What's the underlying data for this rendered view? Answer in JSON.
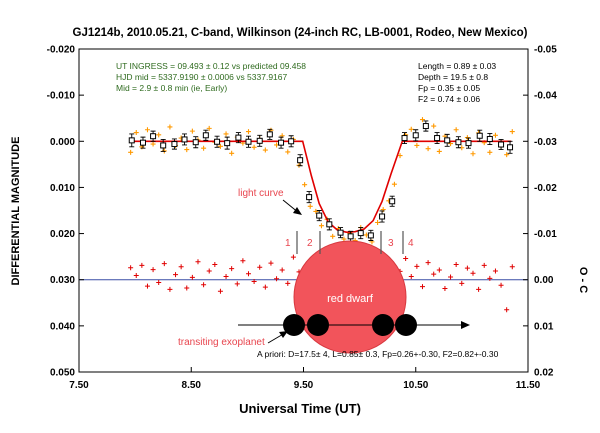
{
  "chart_data": {
    "type": "scatter",
    "title": "GJ1214b, 2010.05.21, C-band, Wilkinson (24-inch RC, LB-0001, Rodeo, New Mexico)",
    "xlabel": "Universal Time (UT)",
    "ylabel": "DIFFERENTIAL MAGNITUDE",
    "y2label": "O - C",
    "xlim": [
      7.5,
      11.5
    ],
    "ylim_reversed": [
      -0.02,
      0.05
    ],
    "y2lim_reversed": [
      -0.05,
      0.02
    ],
    "x_ticks": [
      7.5,
      8.5,
      9.5,
      10.5,
      11.5
    ],
    "x_tick_labels": [
      "7.50",
      "8.50",
      "9.50",
      "10.50",
      "11.50"
    ],
    "y_ticks": [
      -0.02,
      -0.01,
      0.0,
      0.01,
      0.02,
      0.03,
      0.04,
      0.05
    ],
    "y_tick_labels": [
      "-0.020",
      "-0.010",
      "0.000",
      "0.010",
      "0.020",
      "0.030",
      "0.040",
      "0.050"
    ],
    "y2_ticks": [
      -0.05,
      -0.04,
      -0.03,
      -0.02,
      -0.01,
      0.0,
      0.01,
      0.02
    ],
    "y2_tick_labels": [
      "-0.05",
      "-0.04",
      "-0.03",
      "-0.02",
      "-0.01",
      "0.00",
      "0.01",
      "0.02"
    ],
    "info_left": [
      "UT INGRESS = 09.493 ± 0.12 vs predicted  09.458",
      "HJD mid = 5337.9190 ± 0.0006 vs 5337.9167",
      "Mid = 2.9 ± 0.8 min (ie, Early)"
    ],
    "info_right": [
      "Length = 0.89 ± 0.03",
      "Depth = 19.5 ± 0.8",
      "Fp = 0.35 ± 0.05",
      "F2 = 0.74 ± 0.06"
    ],
    "annotations": {
      "light_curve": "light curve",
      "red_dwarf": "red dwarf",
      "transiting_exoplanet": "transiting exoplanet",
      "apriori": "A priori: D=17.5± 4, L=0.85± 0.3, Fp=0.26+-0.30, F2=0.82+-0.30",
      "phases": [
        "1",
        "2",
        "3",
        "4"
      ]
    },
    "model": {
      "name": "model fit",
      "color": "#e00000",
      "x": [
        7.95,
        9.493,
        9.57,
        9.64,
        9.72,
        9.8,
        9.88,
        9.96,
        10.04,
        10.12,
        10.2,
        10.28,
        10.38,
        11.35
      ],
      "y": [
        0.0,
        0.0,
        0.0075,
        0.0135,
        0.0175,
        0.0192,
        0.0197,
        0.0196,
        0.019,
        0.0172,
        0.013,
        0.007,
        0.0,
        0.0
      ]
    },
    "binned": {
      "name": "binned data",
      "marker": "open square with error bars",
      "x": [
        7.97,
        8.07,
        8.16,
        8.25,
        8.35,
        8.44,
        8.54,
        8.63,
        8.73,
        8.82,
        8.92,
        9.01,
        9.11,
        9.2,
        9.3,
        9.39,
        9.47,
        9.55,
        9.64,
        9.73,
        9.83,
        9.92,
        10.01,
        10.1,
        10.2,
        10.29,
        10.4,
        10.5,
        10.59,
        10.69,
        10.78,
        10.88,
        10.97,
        11.07,
        11.16,
        11.26,
        11.34
      ],
      "y": [
        -0.0002,
        0.0003,
        -0.0011,
        0.0009,
        0.0006,
        -0.0004,
        0.0002,
        -0.0013,
        0.0001,
        0.0004,
        -0.0008,
        0.0001,
        -0.0001,
        -0.0015,
        0.0003,
        0.0,
        0.0041,
        0.0121,
        0.0161,
        0.018,
        0.0198,
        0.0206,
        0.0199,
        0.0204,
        0.0163,
        0.013,
        -0.0007,
        -0.0013,
        -0.0033,
        -0.0007,
        -0.0002,
        0.0002,
        0.0004,
        -0.0012,
        -0.0005,
        0.0007,
        0.0013
      ],
      "err": [
        0.0014,
        0.0012,
        0.0011,
        0.0013,
        0.0011,
        0.0012,
        0.0012,
        0.0011,
        0.0012,
        0.0013,
        0.0011,
        0.0012,
        0.0012,
        0.0011,
        0.0012,
        0.0012,
        0.0012,
        0.0012,
        0.0011,
        0.0012,
        0.0011,
        0.0011,
        0.0012,
        0.0011,
        0.0012,
        0.0011,
        0.0012,
        0.0012,
        0.0011,
        0.0012,
        0.0013,
        0.0012,
        0.0011,
        0.0012,
        0.0012,
        0.0011,
        0.0013
      ]
    },
    "raw": {
      "name": "individual measurements",
      "marker": "plus",
      "color": "#ff9900",
      "x": [
        7.96,
        8.01,
        8.06,
        8.11,
        8.16,
        8.21,
        8.26,
        8.31,
        8.36,
        8.41,
        8.46,
        8.51,
        8.56,
        8.61,
        8.66,
        8.71,
        8.76,
        8.81,
        8.86,
        8.91,
        8.96,
        9.01,
        9.06,
        9.11,
        9.16,
        9.21,
        9.26,
        9.31,
        9.36,
        9.41,
        9.46,
        9.51,
        9.56,
        9.61,
        9.66,
        9.71,
        9.76,
        9.81,
        9.86,
        9.91,
        9.96,
        10.01,
        10.06,
        10.11,
        10.16,
        10.21,
        10.26,
        10.31,
        10.36,
        10.41,
        10.46,
        10.51,
        10.56,
        10.61,
        10.66,
        10.71,
        10.76,
        10.81,
        10.86,
        10.91,
        10.96,
        11.01,
        11.06,
        11.11,
        11.16,
        11.21,
        11.26,
        11.31,
        11.36
      ],
      "y": [
        0.0024,
        -0.0019,
        0.0012,
        -0.0025,
        0.0006,
        -0.0014,
        0.0021,
        -0.0031,
        0.0009,
        -0.0007,
        0.0018,
        -0.0022,
        -0.0003,
        0.0015,
        -0.0028,
        0.0002,
        0.0011,
        -0.0016,
        0.0026,
        -0.0009,
        0.0004,
        -0.0021,
        0.0013,
        -0.0006,
        0.0019,
        -0.0024,
        0.0008,
        -0.0012,
        0.0023,
        -0.0004,
        0.0052,
        0.0094,
        0.0141,
        0.0152,
        0.0183,
        0.0169,
        0.0206,
        0.0189,
        0.0212,
        0.0199,
        0.0215,
        0.0187,
        0.0203,
        0.0218,
        0.0176,
        0.0148,
        0.0129,
        0.0093,
        0.0031,
        -0.0014,
        -0.0026,
        0.0009,
        -0.0047,
        0.0016,
        -0.0033,
        0.0022,
        -0.0011,
        0.0005,
        -0.0025,
        0.0014,
        -0.0008,
        0.0027,
        -0.0018,
        0.0003,
        0.0024,
        -0.0013,
        0.0011,
        0.0029,
        -0.0021
      ]
    },
    "residuals": {
      "name": "O - C residuals",
      "marker": "plus",
      "color": "#e00000",
      "axis": "y2",
      "x": [
        7.96,
        8.01,
        8.06,
        8.11,
        8.16,
        8.21,
        8.26,
        8.31,
        8.36,
        8.41,
        8.46,
        8.51,
        8.56,
        8.61,
        8.66,
        8.71,
        8.76,
        8.81,
        8.86,
        8.91,
        8.96,
        9.01,
        9.06,
        9.11,
        9.16,
        9.21,
        9.26,
        9.31,
        9.36,
        9.41,
        9.46,
        9.51,
        9.56,
        9.61,
        9.66,
        9.71,
        9.76,
        9.81,
        9.86,
        9.91,
        9.96,
        10.01,
        10.06,
        10.11,
        10.16,
        10.21,
        10.26,
        10.31,
        10.36,
        10.41,
        10.46,
        10.51,
        10.56,
        10.61,
        10.66,
        10.71,
        10.76,
        10.81,
        10.86,
        10.91,
        10.96,
        11.01,
        11.06,
        11.11,
        11.16,
        11.21,
        11.26,
        11.31,
        11.36
      ],
      "y": [
        -0.0026,
        -0.0009,
        -0.0031,
        0.0014,
        -0.0022,
        0.0006,
        -0.0035,
        0.0021,
        -0.0011,
        -0.0028,
        0.0018,
        -0.0005,
        -0.0039,
        0.0011,
        -0.0019,
        -0.0033,
        0.0025,
        -0.0007,
        -0.0024,
        0.0009,
        -0.0041,
        -0.0013,
        0.0004,
        -0.0027,
        0.0016,
        -0.0036,
        -0.0002,
        -0.0021,
        0.0008,
        -0.0049,
        -0.0017,
        0.0003,
        -0.0029,
        0.0012,
        -0.0038,
        -0.0006,
        -0.0031,
        0.0018,
        -0.0022,
        -0.0044,
        -0.0009,
        -0.0027,
        0.0006,
        -0.0034,
        -0.0015,
        -0.0052,
        -0.0023,
        0.0011,
        -0.0018,
        -0.0046,
        -0.0007,
        -0.0029,
        0.0015,
        -0.0037,
        -0.0012,
        -0.0021,
        0.0019,
        -0.0006,
        -0.0033,
        0.0008,
        -0.0025,
        -0.0014,
        0.0021,
        -0.0031,
        -0.0003,
        -0.0019,
        0.0012,
        0.0065,
        -0.0028
      ]
    },
    "zero_line_y2": 0.0,
    "grid": false,
    "legend": "none"
  }
}
